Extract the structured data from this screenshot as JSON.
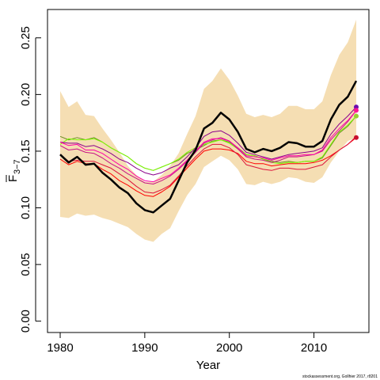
{
  "chart_data": {
    "type": "line",
    "title": "",
    "xlabel": "Year",
    "ylabel": "F",
    "ylabel_subscript": "3−7",
    "xlim": [
      1978.5,
      2016.5
    ],
    "ylim": [
      -0.01,
      0.275
    ],
    "x_ticks": [
      1980,
      1990,
      2000,
      2010
    ],
    "x_tick_labels": [
      "1980",
      "1990",
      "2000",
      "2010"
    ],
    "y_ticks": [
      0.0,
      0.05,
      0.1,
      0.15,
      0.2,
      0.25
    ],
    "y_tick_labels": [
      "0.00",
      "0.05",
      "0.10",
      "0.15",
      "0.20",
      "0.25"
    ],
    "grid": false,
    "x": [
      1980,
      1981,
      1982,
      1983,
      1984,
      1985,
      1986,
      1987,
      1988,
      1989,
      1990,
      1991,
      1992,
      1993,
      1994,
      1995,
      1996,
      1997,
      1998,
      1999,
      2000,
      2001,
      2002,
      2003,
      2004,
      2005,
      2006,
      2007,
      2008,
      2009,
      2010,
      2011,
      2012,
      2013,
      2014,
      2015
    ],
    "band": {
      "color": "#f5deb3",
      "lower": [
        0.092,
        0.091,
        0.095,
        0.093,
        0.094,
        0.091,
        0.089,
        0.086,
        0.083,
        0.077,
        0.072,
        0.07,
        0.077,
        0.082,
        0.097,
        0.111,
        0.121,
        0.136,
        0.141,
        0.146,
        0.142,
        0.134,
        0.121,
        0.12,
        0.123,
        0.121,
        0.123,
        0.127,
        0.126,
        0.123,
        0.122,
        0.127,
        0.14,
        0.15,
        0.159,
        0.162
      ],
      "upper": [
        0.203,
        0.189,
        0.194,
        0.182,
        0.181,
        0.17,
        0.16,
        0.149,
        0.137,
        0.129,
        0.123,
        0.123,
        0.129,
        0.137,
        0.148,
        0.165,
        0.181,
        0.205,
        0.212,
        0.223,
        0.213,
        0.199,
        0.183,
        0.18,
        0.182,
        0.18,
        0.183,
        0.19,
        0.19,
        0.187,
        0.187,
        0.194,
        0.217,
        0.235,
        0.246,
        0.266
      ]
    },
    "series": [
      {
        "color": "#000000",
        "width": 2.5,
        "values": [
          0.147,
          0.14,
          0.145,
          0.138,
          0.139,
          0.131,
          0.125,
          0.118,
          0.113,
          0.104,
          0.098,
          0.096,
          0.102,
          0.108,
          0.124,
          0.14,
          0.151,
          0.17,
          0.175,
          0.184,
          0.178,
          0.167,
          0.152,
          0.149,
          0.152,
          0.15,
          0.153,
          0.158,
          0.157,
          0.154,
          0.154,
          0.159,
          0.178,
          0.191,
          0.198,
          0.212
        ]
      },
      {
        "color": "#6b8e23",
        "width": 1,
        "values": [
          0.163,
          0.16,
          0.162,
          0.16,
          0.162,
          0.158,
          0.153,
          0.149,
          0.145,
          0.139,
          0.135,
          0.133,
          0.136,
          0.139,
          0.142,
          0.148,
          0.151,
          0.155,
          0.159,
          0.16,
          0.158,
          0.153,
          0.147,
          0.146,
          0.143,
          0.141,
          0.14,
          0.141,
          0.14,
          0.141,
          0.141,
          0.144,
          0.155,
          0.166,
          0.172,
          0.181
        ]
      },
      {
        "color": "#7cfc00",
        "width": 1,
        "values": [
          0.156,
          0.161,
          0.16,
          0.16,
          0.161,
          0.158,
          0.153,
          0.149,
          0.145,
          0.139,
          0.135,
          0.133,
          0.136,
          0.139,
          0.143,
          0.149,
          0.153,
          0.156,
          0.158,
          0.16,
          0.157,
          0.152,
          0.147,
          0.146,
          0.143,
          0.14,
          0.139,
          0.14,
          0.14,
          0.141,
          0.141,
          0.145,
          0.156,
          0.167,
          0.173,
          0.181
        ]
      },
      {
        "color": "#8b008b",
        "width": 1,
        "values": [
          0.158,
          0.157,
          0.157,
          0.154,
          0.155,
          0.152,
          0.148,
          0.143,
          0.14,
          0.135,
          0.131,
          0.129,
          0.131,
          0.135,
          0.138,
          0.145,
          0.153,
          0.163,
          0.167,
          0.168,
          0.164,
          0.157,
          0.149,
          0.147,
          0.145,
          0.143,
          0.145,
          0.147,
          0.148,
          0.149,
          0.15,
          0.153,
          0.165,
          0.174,
          0.181,
          0.189
        ]
      },
      {
        "color": "#c71585",
        "width": 1,
        "values": [
          0.155,
          0.151,
          0.152,
          0.149,
          0.148,
          0.144,
          0.139,
          0.135,
          0.13,
          0.126,
          0.122,
          0.121,
          0.124,
          0.128,
          0.134,
          0.141,
          0.149,
          0.157,
          0.16,
          0.162,
          0.159,
          0.152,
          0.145,
          0.143,
          0.142,
          0.14,
          0.142,
          0.145,
          0.145,
          0.146,
          0.147,
          0.15,
          0.16,
          0.168,
          0.176,
          0.186
        ]
      },
      {
        "color": "#ff00aa",
        "width": 1,
        "values": [
          0.158,
          0.155,
          0.156,
          0.151,
          0.151,
          0.148,
          0.143,
          0.138,
          0.134,
          0.128,
          0.124,
          0.123,
          0.126,
          0.129,
          0.135,
          0.142,
          0.15,
          0.158,
          0.161,
          0.161,
          0.159,
          0.153,
          0.146,
          0.145,
          0.144,
          0.142,
          0.144,
          0.146,
          0.146,
          0.147,
          0.147,
          0.151,
          0.162,
          0.17,
          0.177,
          0.186
        ]
      },
      {
        "color": "#ff0000",
        "width": 1,
        "values": [
          0.143,
          0.138,
          0.141,
          0.139,
          0.139,
          0.134,
          0.13,
          0.124,
          0.12,
          0.115,
          0.111,
          0.11,
          0.114,
          0.119,
          0.127,
          0.135,
          0.143,
          0.15,
          0.152,
          0.152,
          0.151,
          0.148,
          0.141,
          0.139,
          0.139,
          0.137,
          0.138,
          0.139,
          0.139,
          0.139,
          0.14,
          0.142,
          0.146,
          0.151,
          0.156,
          0.162
        ]
      },
      {
        "color": "#dc143c",
        "width": 1,
        "values": [
          0.147,
          0.141,
          0.142,
          0.141,
          0.141,
          0.138,
          0.135,
          0.13,
          0.125,
          0.119,
          0.114,
          0.113,
          0.116,
          0.12,
          0.128,
          0.137,
          0.145,
          0.152,
          0.156,
          0.156,
          0.153,
          0.147,
          0.138,
          0.136,
          0.134,
          0.133,
          0.135,
          0.135,
          0.134,
          0.134,
          0.136,
          0.138,
          0.145,
          0.151,
          0.156,
          0.163
        ]
      }
    ],
    "end_points": [
      {
        "x": 2015,
        "y": 0.189,
        "color": "#6a0dad"
      },
      {
        "x": 2015,
        "y": 0.186,
        "color": "#ff1493"
      },
      {
        "x": 2015,
        "y": 0.181,
        "color": "#9acd32"
      },
      {
        "x": 2015,
        "y": 0.162,
        "color": "#c8102e"
      }
    ],
    "credit": "stockassessment.org, Gollhier 2017, r8201"
  }
}
